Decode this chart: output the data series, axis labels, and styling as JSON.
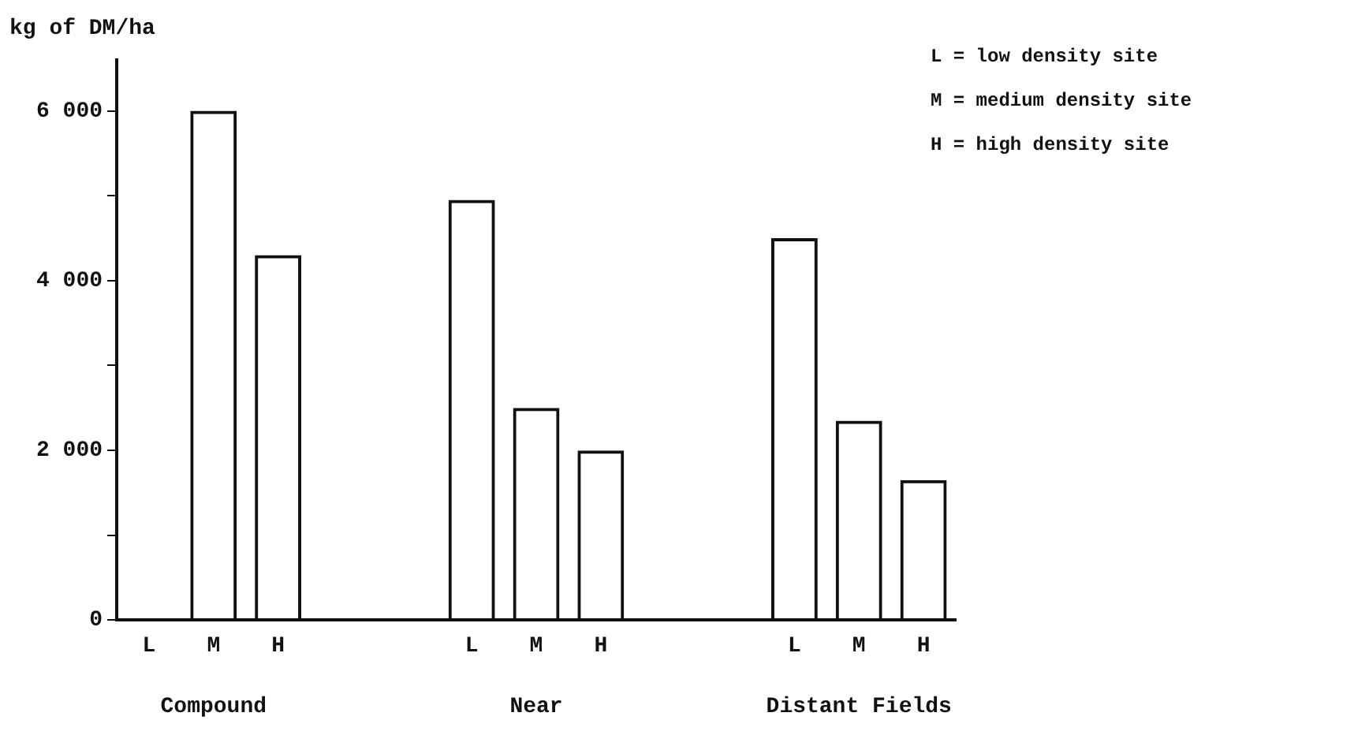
{
  "chart_data": {
    "type": "bar",
    "ylabel": "kg of DM/ha",
    "categories": [
      "L",
      "M",
      "H",
      null,
      null,
      "L",
      "M",
      "H",
      null,
      null,
      "L",
      "M",
      "H"
    ],
    "values": [
      null,
      6000,
      4300,
      null,
      null,
      4950,
      2500,
      2000,
      null,
      null,
      4500,
      2350,
      1650
    ],
    "color": "#111111",
    "ylim": [
      0,
      6600
    ],
    "yticks": [
      0,
      {
        "value": 1000,
        "label": null
      },
      {
        "value": 2000,
        "label": "2 000"
      },
      {
        "value": 3000,
        "label": null
      },
      {
        "value": 4000,
        "label": "4 000"
      },
      {
        "value": 5000,
        "label": null
      },
      {
        "value": 6000,
        "label": "6 000"
      }
    ],
    "grid": false,
    "legend": false,
    "annotations": [
      "Compound",
      "Near",
      "Distant Fields",
      "L = low density site",
      "M = medium density site",
      "H = high density site"
    ]
  }
}
